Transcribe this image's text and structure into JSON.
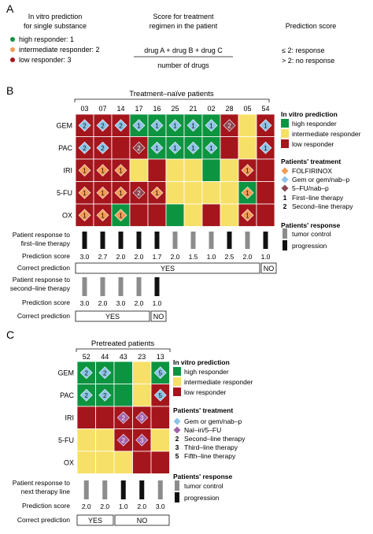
{
  "colors": {
    "high": "#0d9440",
    "intermediate": "#f7e067",
    "low": "#a5151c",
    "folfirinox": "#f39b54",
    "gem_nabp": "#8cc3e8",
    "fu_nabp": "#8b4650",
    "nali_fu": "#a062a8",
    "tumor_control": "#8c8c8c",
    "progression": "#111111"
  },
  "panel_a": {
    "letter": "A",
    "col1_title": [
      "In vitro prediction",
      "for single substance"
    ],
    "legend": [
      {
        "label": "high responder: 1",
        "color_key": "high"
      },
      {
        "label": "intermediate responder: 2",
        "color_key": "folfirinox"
      },
      {
        "label": "low responder: 3",
        "color_key": "low"
      }
    ],
    "col2_title": [
      "Score for treatment",
      "regimen in the patient"
    ],
    "formula_numerator": "drug A + drug B + drug C",
    "formula_denominator": "number of drugs",
    "col3_title": "Prediction score",
    "score_lines": [
      "≤ 2: response",
      "> 2: no response"
    ]
  },
  "panel_b": {
    "letter": "B",
    "title": "Treatment–naïve patients",
    "patients": [
      "03",
      "07",
      "14",
      "17",
      "16",
      "25",
      "21",
      "02",
      "28",
      "05",
      "54"
    ],
    "drugs": [
      "GEM",
      "PAC",
      "IRI",
      "5-FU",
      "OX"
    ],
    "grid": [
      [
        "L",
        "L",
        "L",
        "H",
        "H",
        "H",
        "H",
        "H",
        "L",
        "I",
        "L"
      ],
      [
        "L",
        "L",
        "L",
        "L",
        "H",
        "H",
        "H",
        "H",
        "L",
        "I",
        "L"
      ],
      [
        "L",
        "L",
        "L",
        "I",
        "L",
        "I",
        "I",
        "H",
        "I",
        "L",
        "L"
      ],
      [
        "L",
        "L",
        "L",
        "L",
        "L",
        "I",
        "I",
        "I",
        "I",
        "H",
        "L"
      ],
      [
        "L",
        "L",
        "H",
        "L",
        "L",
        "H",
        "I",
        "L",
        "I",
        "L",
        "L"
      ]
    ],
    "markers": [
      {
        "r": 0,
        "c": 0,
        "shape": "gem",
        "num": "2"
      },
      {
        "r": 0,
        "c": 1,
        "shape": "gem",
        "num": "2"
      },
      {
        "r": 0,
        "c": 2,
        "shape": "gem",
        "num": "2"
      },
      {
        "r": 0,
        "c": 3,
        "shape": "gem",
        "num": "1"
      },
      {
        "r": 0,
        "c": 4,
        "shape": "gem",
        "num": "1"
      },
      {
        "r": 0,
        "c": 5,
        "shape": "gem",
        "num": "1"
      },
      {
        "r": 0,
        "c": 6,
        "shape": "gem",
        "num": "1"
      },
      {
        "r": 0,
        "c": 7,
        "shape": "gem",
        "num": "1"
      },
      {
        "r": 0,
        "c": 8,
        "shape": "fu",
        "num": "2"
      },
      {
        "r": 0,
        "c": 10,
        "shape": "gem",
        "num": "1"
      },
      {
        "r": 1,
        "c": 0,
        "shape": "gem",
        "num": "2"
      },
      {
        "r": 1,
        "c": 1,
        "shape": "gem",
        "num": "2"
      },
      {
        "r": 1,
        "c": 3,
        "shape": "fu",
        "num": "2"
      },
      {
        "r": 1,
        "c": 4,
        "shape": "gem",
        "num": "1"
      },
      {
        "r": 1,
        "c": 5,
        "shape": "gem",
        "num": "1"
      },
      {
        "r": 1,
        "c": 6,
        "shape": "gem",
        "num": "1"
      },
      {
        "r": 1,
        "c": 7,
        "shape": "gem",
        "num": "1"
      },
      {
        "r": 1,
        "c": 10,
        "shape": "gem",
        "num": "1"
      },
      {
        "r": 2,
        "c": 0,
        "shape": "ffx",
        "num": "1"
      },
      {
        "r": 2,
        "c": 1,
        "shape": "ffx",
        "num": "1"
      },
      {
        "r": 2,
        "c": 2,
        "shape": "ffx",
        "num": "1"
      },
      {
        "r": 2,
        "c": 9,
        "shape": "ffx",
        "num": "1"
      },
      {
        "r": 3,
        "c": 0,
        "shape": "ffx",
        "num": "1"
      },
      {
        "r": 3,
        "c": 1,
        "shape": "ffx",
        "num": "1"
      },
      {
        "r": 3,
        "c": 2,
        "shape": "ffx",
        "num": "1"
      },
      {
        "r": 3,
        "c": 3,
        "shape": "fu",
        "num": "2"
      },
      {
        "r": 3,
        "c": 4,
        "shape": "ffx",
        "num": "1"
      },
      {
        "r": 3,
        "c": 9,
        "shape": "ffx",
        "num": "1"
      },
      {
        "r": 4,
        "c": 0,
        "shape": "ffx",
        "num": "1"
      },
      {
        "r": 4,
        "c": 1,
        "shape": "ffx",
        "num": "1"
      },
      {
        "r": 4,
        "c": 2,
        "shape": "ffx",
        "num": "1"
      },
      {
        "r": 4,
        "c": 9,
        "shape": "ffx",
        "num": "1"
      }
    ],
    "first_line_label": [
      "Patient response to",
      "first–line therapy"
    ],
    "first_line_response": [
      "P",
      "P",
      "P",
      "P",
      "P",
      "T",
      "T",
      "T",
      "P",
      "T",
      "P"
    ],
    "score_label": "Prediction score",
    "first_line_scores": [
      "3.0",
      "2.7",
      "2.0",
      "2.0",
      "1.7",
      "2.0",
      "1.5",
      "1.0",
      "2.5",
      "2.0",
      "1.0"
    ],
    "correct_label": "Correct prediction",
    "correct_yes": "YES",
    "correct_no": "NO",
    "second_line_label": [
      "Patient response to",
      "second–line therapy"
    ],
    "second_line_response": [
      "T",
      "T",
      "T",
      "T",
      "P"
    ],
    "second_line_scores": [
      "3.0",
      "2.0",
      "3.0",
      "2.0",
      "1.0"
    ],
    "legend_invitro_title": "In vitro prediction",
    "legend_invitro": [
      {
        "label": "high responder",
        "color_key": "high"
      },
      {
        "label": "intermediate responder",
        "color_key": "intermediate"
      },
      {
        "label": "low responder",
        "color_key": "low"
      }
    ],
    "legend_treat_title": "Patients' treatment",
    "legend_treat": [
      {
        "label": "FOLFIRINOX",
        "color_key": "folfirinox"
      },
      {
        "label": "Gem or gem/nab–p",
        "color_key": "gem_nabp"
      },
      {
        "label": "5–FU/nab–p",
        "color_key": "fu_nabp"
      }
    ],
    "legend_lines": [
      {
        "num": "1",
        "label": "First–line therapy"
      },
      {
        "num": "2",
        "label": "Second–line therapy"
      }
    ],
    "legend_resp_title": "Patients' response",
    "legend_resp": [
      {
        "label": "tumor control",
        "color_key": "tumor_control"
      },
      {
        "label": "progression",
        "color_key": "progression"
      }
    ]
  },
  "panel_c": {
    "letter": "C",
    "title": "Pretreated patients",
    "patients": [
      "52",
      "44",
      "43",
      "23",
      "13"
    ],
    "drugs": [
      "GEM",
      "PAC",
      "IRI",
      "5-FU",
      "OX"
    ],
    "grid": [
      [
        "H",
        "H",
        "H",
        "I",
        "H"
      ],
      [
        "H",
        "H",
        "H",
        "I",
        "L"
      ],
      [
        "L",
        "L",
        "L",
        "L",
        "L"
      ],
      [
        "I",
        "I",
        "L",
        "L",
        "I"
      ],
      [
        "I",
        "I",
        "I",
        "L",
        "L"
      ]
    ],
    "markers": [
      {
        "r": 0,
        "c": 0,
        "shape": "gem",
        "num": "2"
      },
      {
        "r": 0,
        "c": 1,
        "shape": "gem",
        "num": "2"
      },
      {
        "r": 0,
        "c": 4,
        "shape": "gem",
        "num": "5"
      },
      {
        "r": 1,
        "c": 0,
        "shape": "gem",
        "num": "2"
      },
      {
        "r": 1,
        "c": 1,
        "shape": "gem",
        "num": "2"
      },
      {
        "r": 1,
        "c": 4,
        "shape": "gem",
        "num": "5"
      },
      {
        "r": 2,
        "c": 2,
        "shape": "nali",
        "num": "2"
      },
      {
        "r": 2,
        "c": 3,
        "shape": "nali",
        "num": "3"
      },
      {
        "r": 3,
        "c": 2,
        "shape": "nali",
        "num": "2"
      },
      {
        "r": 3,
        "c": 3,
        "shape": "nali",
        "num": "3"
      }
    ],
    "response_label": [
      "Patient response to",
      "next therapy line"
    ],
    "response": [
      "T",
      "T",
      "P",
      "P",
      "T"
    ],
    "score_label": "Prediction score",
    "scores": [
      "2.0",
      "2.0",
      "1.0",
      "2.0",
      "3.0"
    ],
    "correct_label": "Correct prediction",
    "correct_yes": "YES",
    "correct_no": "NO",
    "legend_invitro_title": "In vitro prediction",
    "legend_invitro": [
      {
        "label": "high responder",
        "color_key": "high"
      },
      {
        "label": "intermediate responder",
        "color_key": "intermediate"
      },
      {
        "label": "low responder",
        "color_key": "low"
      }
    ],
    "legend_treat_title": "Patients' treatment",
    "legend_treat": [
      {
        "label": "Gem or gem/nab–p",
        "color_key": "gem_nabp"
      },
      {
        "label": "Nal–iri/5–FU",
        "color_key": "nali_fu"
      }
    ],
    "legend_lines": [
      {
        "num": "2",
        "label": "Second–line therapy"
      },
      {
        "num": "3",
        "label": "Third–line therapy"
      },
      {
        "num": "5",
        "label": "Fifth–line therapy"
      }
    ],
    "legend_resp_title": "Patients' response",
    "legend_resp": [
      {
        "label": "tumor control",
        "color_key": "tumor_control"
      },
      {
        "label": "progression",
        "color_key": "progression"
      }
    ]
  }
}
